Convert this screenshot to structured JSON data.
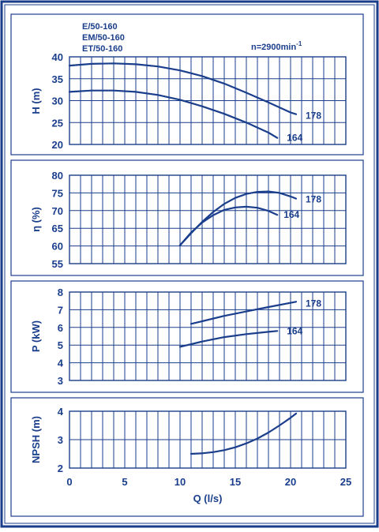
{
  "colors": {
    "ink": "#1a3e8c",
    "frame": "#1a3e8c",
    "background": "#ffffff"
  },
  "header": {
    "models": [
      "E/50-160",
      "EM/50-160",
      "ET/50-160"
    ],
    "speed": "n=2900min",
    "speed_exp": "-1"
  },
  "chart_data": [
    {
      "type": "line",
      "name": "head",
      "ylabel": "H (m)",
      "xlabel": "",
      "xlim": [
        0,
        25
      ],
      "ylim": [
        20,
        40
      ],
      "yticks": [
        20,
        25,
        30,
        35,
        40
      ],
      "grid": true,
      "series": [
        {
          "name": "178",
          "x": [
            0,
            2,
            4,
            6,
            8,
            10,
            12,
            14,
            16,
            18,
            20,
            20.5
          ],
          "y": [
            38.0,
            38.4,
            38.5,
            38.3,
            37.8,
            36.9,
            35.6,
            33.9,
            31.8,
            29.6,
            27.3,
            26.9
          ]
        },
        {
          "name": "164",
          "x": [
            0,
            2,
            4,
            6,
            8,
            10,
            12,
            14,
            16,
            18,
            18.8
          ],
          "y": [
            32.0,
            32.3,
            32.3,
            32.0,
            31.3,
            30.2,
            28.7,
            27.0,
            25.0,
            22.7,
            21.5
          ]
        }
      ]
    },
    {
      "type": "line",
      "name": "efficiency",
      "ylabel": "η (%)",
      "xlabel": "",
      "xlim": [
        0,
        25
      ],
      "ylim": [
        55,
        80
      ],
      "yticks": [
        55,
        60,
        65,
        70,
        75,
        80
      ],
      "grid": true,
      "series": [
        {
          "name": "178",
          "x": [
            10,
            11,
            12,
            13,
            14,
            15,
            16,
            17,
            18,
            19,
            20,
            20.5
          ],
          "y": [
            60.2,
            63.6,
            66.8,
            69.6,
            71.9,
            73.6,
            74.7,
            75.3,
            75.4,
            75.0,
            74.0,
            73.4
          ]
        },
        {
          "name": "164",
          "x": [
            10,
            11,
            12,
            13,
            14,
            15,
            16,
            17,
            18,
            18.8
          ],
          "y": [
            60.2,
            63.8,
            66.6,
            68.7,
            70.2,
            70.9,
            71.1,
            70.8,
            69.9,
            68.8
          ]
        }
      ]
    },
    {
      "type": "line",
      "name": "power",
      "ylabel": "P (kW)",
      "xlabel": "",
      "xlim": [
        0,
        25
      ],
      "ylim": [
        3,
        8
      ],
      "yticks": [
        3,
        4,
        5,
        6,
        7,
        8
      ],
      "grid": true,
      "series": [
        {
          "name": "178",
          "x": [
            11,
            12,
            14,
            16,
            18,
            20.5
          ],
          "y": [
            6.2,
            6.35,
            6.65,
            6.9,
            7.15,
            7.45
          ]
        },
        {
          "name": "164",
          "x": [
            10,
            12,
            14,
            16,
            18,
            18.8
          ],
          "y": [
            4.9,
            5.2,
            5.45,
            5.62,
            5.75,
            5.8
          ]
        }
      ]
    },
    {
      "type": "line",
      "name": "npsh",
      "ylabel": "NPSH (m)",
      "xlabel": "Q (l/s)",
      "xlim": [
        0,
        25
      ],
      "ylim": [
        2,
        4
      ],
      "yticks": [
        2,
        3,
        4
      ],
      "xticks": [
        0,
        5,
        10,
        15,
        20,
        25
      ],
      "grid": true,
      "series": [
        {
          "name": "",
          "x": [
            11,
            12,
            13,
            14,
            15,
            16,
            17,
            18,
            19,
            20,
            20.5
          ],
          "y": [
            2.5,
            2.52,
            2.56,
            2.63,
            2.73,
            2.87,
            3.04,
            3.25,
            3.5,
            3.77,
            3.92
          ]
        }
      ]
    }
  ]
}
